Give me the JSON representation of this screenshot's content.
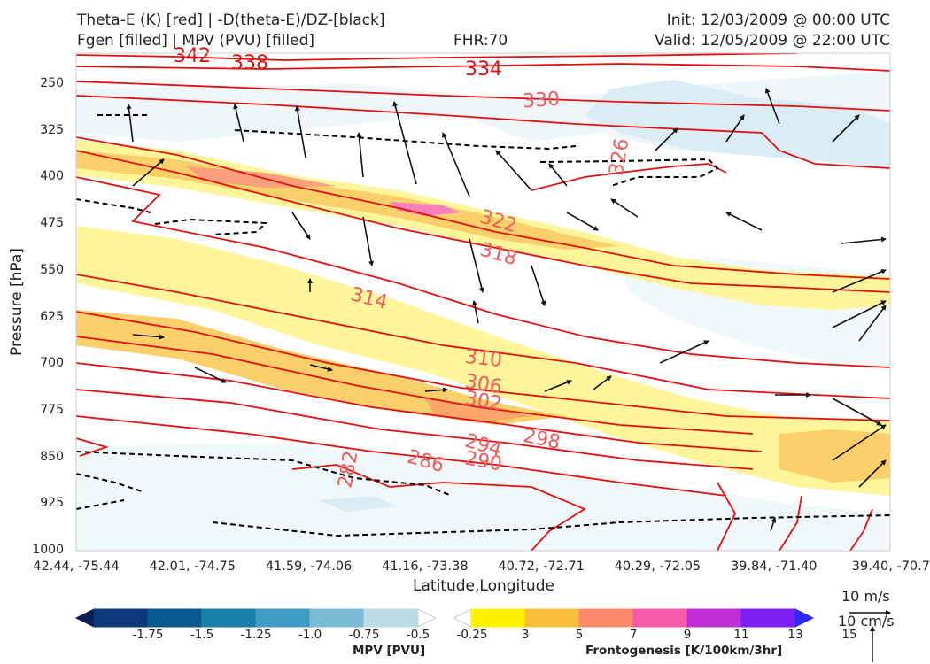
{
  "header": {
    "line1_left": "Theta-E (K) [red] | -D(theta-E)/DZ-[black]",
    "line2_left": "Fgen [filled] | MPV (PVU) [filled]",
    "fhr": "FHR:70",
    "init": "Init: 12/03/2009 @ 00:00 UTC",
    "valid": "Valid: 12/05/2009 @ 22:00 UTC"
  },
  "chart_data": {
    "type": "cross-section",
    "xlabel": "Latitude,Longitude",
    "ylabel": "Pressure [hPa]",
    "x_ticks": [
      "42.44, -75.44",
      "42.01, -74.75",
      "41.59, -74.06",
      "41.16, -73.38",
      "40.72, -72.71",
      "40.29, -72.05",
      "39.84, -71.40",
      "39.40, -70.7"
    ],
    "y_ticks": [
      250,
      325,
      400,
      475,
      550,
      625,
      700,
      775,
      850,
      925,
      1000
    ],
    "ylim": [
      1000,
      200
    ],
    "theta_e_contour_labels_K": [
      342,
      338,
      334,
      330,
      326,
      322,
      318,
      314,
      310,
      306,
      302,
      298,
      294,
      290,
      286,
      282
    ],
    "contours": {
      "theta_e": "red",
      "neg_dthetae_dz": "black dashed",
      "fgen": "filled",
      "mpv": "filled"
    },
    "mpv_colorbar": {
      "title": "MPV [PVU]",
      "ticks": [
        "-1.75",
        "-1.5",
        "-1.25",
        "-1.0",
        "-0.75",
        "-0.5",
        "-0.25"
      ],
      "colors": [
        "#081d58",
        "#0c3a78",
        "#0b5a8e",
        "#1a7fa8",
        "#3e9cc2",
        "#7cbbd4",
        "#bcdde6",
        "#ffffff"
      ]
    },
    "fgen_colorbar": {
      "title": "Frontogenesis [K/100km/3hr]",
      "ticks": [
        "3",
        "5",
        "7",
        "9",
        "11",
        "13",
        "15"
      ],
      "colors": [
        "#ffffff",
        "#fff200",
        "#fbbd3c",
        "#fb8a68",
        "#f55ba6",
        "#c02fd6",
        "#7b1ff2",
        "#2b2bff"
      ]
    },
    "vector_scale": {
      "horizontal": "10 m/s",
      "vertical": "10 cm/s"
    }
  }
}
